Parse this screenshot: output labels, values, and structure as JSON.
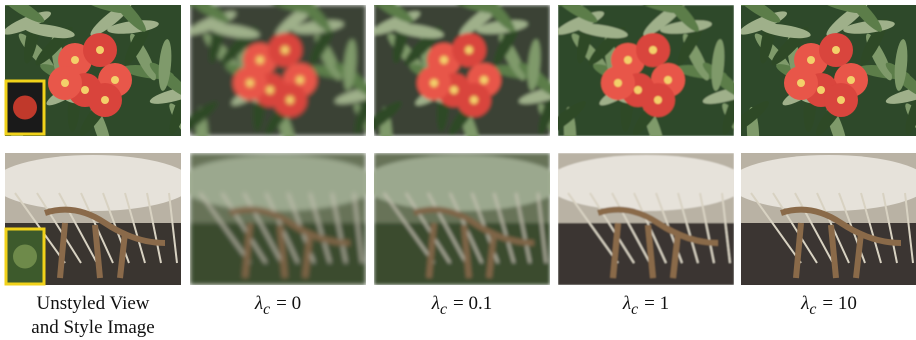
{
  "figure": {
    "columns": [
      {
        "caption": [
          "Unstyled View",
          "and Style Image"
        ]
      },
      {
        "symbol": "λ",
        "subscript": "c",
        "equals": "= 0"
      },
      {
        "symbol": "λ",
        "subscript": "c",
        "equals": "= 0.1"
      },
      {
        "symbol": "λ",
        "subscript": "c",
        "equals": "= 1"
      },
      {
        "symbol": "λ",
        "subscript": "c",
        "equals": "= 10"
      }
    ]
  }
}
